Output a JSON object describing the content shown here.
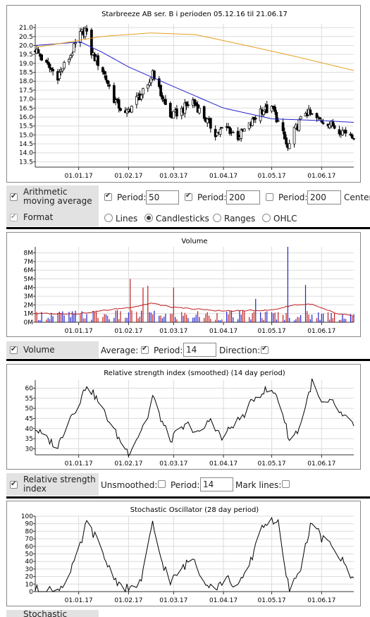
{
  "charts": {
    "price": {
      "title": "Starbreeze AB ser. B i perioden 05.12.16 til 21.06.17",
      "yticks": [
        "21.0",
        "20.5",
        "20.0",
        "19.5",
        "19.0",
        "18.5",
        "18.0",
        "17.5",
        "17.0",
        "16.5",
        "16.0",
        "15.5",
        "15.0",
        "14.5",
        "14.0",
        "13.5"
      ],
      "xticks": [
        "01.01.17",
        "01.02.17",
        "01.03.17",
        "01.04.17",
        "01.05.17",
        "01.06.17"
      ]
    },
    "volume": {
      "title": "Volume",
      "yticks": [
        "8M",
        "7M",
        "6M",
        "5M",
        "4M",
        "3M",
        "2M",
        "1M",
        "0M"
      ],
      "xticks": [
        "01.01.17",
        "01.02.17",
        "01.03.17",
        "01.04.17",
        "01.05.17",
        "01.06.17"
      ]
    },
    "rsi": {
      "title": "Relative strength index (smoothed) (14 day period)",
      "yticks": [
        "60",
        "55",
        "50",
        "45",
        "40",
        "35",
        "30"
      ],
      "xticks": [
        "01.01.17",
        "01.02.17",
        "01.03.17",
        "01.04.17",
        "01.05.17",
        "01.06.17"
      ]
    },
    "stoch": {
      "title": "Stochastic Oscillator (28 day period)",
      "yticks": [
        "100",
        "90",
        "80",
        "70",
        "60",
        "50",
        "40",
        "30",
        "20",
        "10",
        "0"
      ],
      "xticks": [
        "01.01.17",
        "01.02.17",
        "01.03.17",
        "01.04.17",
        "01.05.17",
        "01.06.17"
      ]
    }
  },
  "chart_data": [
    {
      "type": "candlestick",
      "title": "Starbreeze AB ser. B i perioden 05.12.16 til 21.06.17",
      "ylim": [
        13.2,
        21.2
      ],
      "xlim": [
        "2016-12-05",
        "2017-06-21"
      ],
      "xticks": [
        "01.01.17",
        "01.02.17",
        "01.03.17",
        "01.04.17",
        "01.05.17",
        "01.06.17"
      ],
      "grid": true,
      "close_keypoints": [
        [
          "2016-12-05",
          19.8
        ],
        [
          "2016-12-12",
          18.9
        ],
        [
          "2016-12-19",
          18.3
        ],
        [
          "2016-12-26",
          19.3
        ],
        [
          "2017-01-02",
          20.6
        ],
        [
          "2017-01-05",
          20.9
        ],
        [
          "2017-01-09",
          19.6
        ],
        [
          "2017-01-16",
          18.6
        ],
        [
          "2017-01-23",
          17.0
        ],
        [
          "2017-01-30",
          16.1
        ],
        [
          "2017-02-06",
          17.0
        ],
        [
          "2017-02-13",
          17.6
        ],
        [
          "2017-02-16",
          18.6
        ],
        [
          "2017-02-20",
          17.5
        ],
        [
          "2017-02-27",
          16.0
        ],
        [
          "2017-03-06",
          16.4
        ],
        [
          "2017-03-13",
          16.9
        ],
        [
          "2017-03-20",
          16.0
        ],
        [
          "2017-03-27",
          15.1
        ],
        [
          "2017-04-03",
          15.4
        ],
        [
          "2017-04-10",
          14.9
        ],
        [
          "2017-04-18",
          15.6
        ],
        [
          "2017-04-24",
          16.4
        ],
        [
          "2017-05-02",
          16.4
        ],
        [
          "2017-05-08",
          15.0
        ],
        [
          "2017-05-11",
          14.2
        ],
        [
          "2017-05-15",
          15.2
        ],
        [
          "2017-05-22",
          16.3
        ],
        [
          "2017-05-29",
          15.9
        ],
        [
          "2017-06-05",
          15.7
        ],
        [
          "2017-06-12",
          15.3
        ],
        [
          "2017-06-21",
          15.0
        ]
      ],
      "series": [
        {
          "name": "Period: 50",
          "color": "#2222cc",
          "keypoints": [
            [
              "2016-12-05",
              20.0
            ],
            [
              "2016-12-20",
              20.1
            ],
            [
              "2017-01-02",
              20.2
            ],
            [
              "2017-01-16",
              19.6
            ],
            [
              "2017-02-01",
              18.8
            ],
            [
              "2017-03-01",
              17.7
            ],
            [
              "2017-04-01",
              16.5
            ],
            [
              "2017-05-01",
              15.9
            ],
            [
              "2017-06-01",
              15.8
            ],
            [
              "2017-06-21",
              15.7
            ]
          ]
        },
        {
          "name": "Period: 200",
          "color": "#e8a020",
          "keypoints": [
            [
              "2016-12-05",
              19.9
            ],
            [
              "2016-12-20",
              20.1
            ],
            [
              "2017-01-15",
              20.5
            ],
            [
              "2017-02-15",
              20.7
            ],
            [
              "2017-03-15",
              20.6
            ],
            [
              "2017-04-15",
              20.0
            ],
            [
              "2017-05-15",
              19.4
            ],
            [
              "2017-06-21",
              18.6
            ]
          ]
        }
      ]
    },
    {
      "type": "bar",
      "title": "Volume",
      "ylim": [
        0,
        8700000
      ],
      "xticks": [
        "01.01.17",
        "01.02.17",
        "01.03.17",
        "01.04.17",
        "01.05.17",
        "01.06.17"
      ],
      "spikes": [
        {
          "date": "2017-02-02",
          "value": 5000000,
          "color": "#c02020"
        },
        {
          "date": "2017-02-10",
          "value": 4000000,
          "color": "#c02020"
        },
        {
          "date": "2017-02-13",
          "value": 4200000,
          "color": "#c02020"
        },
        {
          "date": "2017-03-01",
          "value": 4000000,
          "color": "#c02020"
        },
        {
          "date": "2017-04-21",
          "value": 2700000,
          "color": "#2222cc"
        },
        {
          "date": "2017-05-11",
          "value": 8700000,
          "color": "#2222cc"
        },
        {
          "date": "2017-05-22",
          "value": 4300000,
          "color": "#2222cc"
        }
      ],
      "series": [
        {
          "name": "Average",
          "color": "#c02020",
          "keypoints": [
            [
              "2016-12-05",
              1000000
            ],
            [
              "2017-01-01",
              1000000
            ],
            [
              "2017-02-05",
              1800000
            ],
            [
              "2017-02-15",
              2200000
            ],
            [
              "2017-03-01",
              1700000
            ],
            [
              "2017-04-01",
              1300000
            ],
            [
              "2017-05-01",
              1400000
            ],
            [
              "2017-05-15",
              2000000
            ],
            [
              "2017-05-25",
              2100000
            ],
            [
              "2017-06-10",
              1000000
            ],
            [
              "2017-06-21",
              700000
            ]
          ]
        }
      ]
    },
    {
      "type": "line",
      "title": "Relative strength index (smoothed) (14 day period)",
      "ylim": [
        27,
        64
      ],
      "xticks": [
        "01.01.17",
        "01.02.17",
        "01.03.17",
        "01.04.17",
        "01.05.17",
        "01.06.17"
      ],
      "series": [
        {
          "name": "RSI",
          "color": "#000000",
          "keypoints": [
            [
              "2016-12-05",
              40
            ],
            [
              "2016-12-12",
              35
            ],
            [
              "2016-12-19",
              31
            ],
            [
              "2016-12-26",
              45
            ],
            [
              "2017-01-01",
              52
            ],
            [
              "2017-01-06",
              62
            ],
            [
              "2017-01-12",
              55
            ],
            [
              "2017-01-19",
              45
            ],
            [
              "2017-01-26",
              35
            ],
            [
              "2017-02-01",
              28
            ],
            [
              "2017-02-06",
              35
            ],
            [
              "2017-02-13",
              46
            ],
            [
              "2017-02-16",
              56
            ],
            [
              "2017-02-21",
              45
            ],
            [
              "2017-02-27",
              34
            ],
            [
              "2017-03-03",
              38
            ],
            [
              "2017-03-10",
              42
            ],
            [
              "2017-03-17",
              37
            ],
            [
              "2017-03-24",
              45
            ],
            [
              "2017-03-31",
              35
            ],
            [
              "2017-04-07",
              42
            ],
            [
              "2017-04-13",
              46
            ],
            [
              "2017-04-20",
              55
            ],
            [
              "2017-04-27",
              59
            ],
            [
              "2017-05-04",
              57
            ],
            [
              "2017-05-09",
              44
            ],
            [
              "2017-05-12",
              34
            ],
            [
              "2017-05-18",
              40
            ],
            [
              "2017-05-26",
              63
            ],
            [
              "2017-06-01",
              52
            ],
            [
              "2017-06-08",
              53
            ],
            [
              "2017-06-14",
              46
            ],
            [
              "2017-06-21",
              42
            ]
          ]
        }
      ]
    },
    {
      "type": "line",
      "title": "Stochastic Oscillator (28 day period)",
      "ylim": [
        0,
        100
      ],
      "xticks": [
        "01.01.17",
        "01.02.17",
        "01.03.17",
        "01.04.17",
        "01.05.17",
        "01.06.17"
      ],
      "series": [
        {
          "name": "Stochastic",
          "color": "#000000",
          "keypoints": [
            [
              "2016-12-05",
              3
            ],
            [
              "2016-12-19",
              2
            ],
            [
              "2016-12-26",
              20
            ],
            [
              "2017-01-02",
              60
            ],
            [
              "2017-01-06",
              92
            ],
            [
              "2017-01-12",
              70
            ],
            [
              "2017-01-19",
              35
            ],
            [
              "2017-01-26",
              10
            ],
            [
              "2017-02-02",
              2
            ],
            [
              "2017-02-09",
              15
            ],
            [
              "2017-02-16",
              90
            ],
            [
              "2017-02-21",
              45
            ],
            [
              "2017-02-27",
              12
            ],
            [
              "2017-03-06",
              30
            ],
            [
              "2017-03-13",
              45
            ],
            [
              "2017-03-20",
              15
            ],
            [
              "2017-03-27",
              5
            ],
            [
              "2017-04-03",
              18
            ],
            [
              "2017-04-10",
              5
            ],
            [
              "2017-04-18",
              40
            ],
            [
              "2017-04-24",
              85
            ],
            [
              "2017-05-01",
              95
            ],
            [
              "2017-05-05",
              90
            ],
            [
              "2017-05-09",
              30
            ],
            [
              "2017-05-12",
              3
            ],
            [
              "2017-05-18",
              25
            ],
            [
              "2017-05-26",
              95
            ],
            [
              "2017-06-01",
              70
            ],
            [
              "2017-06-08",
              60
            ],
            [
              "2017-06-14",
              40
            ],
            [
              "2017-06-21",
              15
            ]
          ]
        }
      ]
    }
  ],
  "controls": {
    "ma": {
      "label": "Arithmetic moving average",
      "p1_label": "Period:",
      "p1_value": "50",
      "p2_label": "Period:",
      "p2_value": "200",
      "p3_label": "Period:",
      "p3_value": "200",
      "center_label": "Center"
    },
    "format": {
      "label": "Format",
      "options": [
        "Lines",
        "Candlesticks",
        "Ranges",
        "OHLC"
      ],
      "selected": "Candlesticks"
    },
    "volume": {
      "label": "Volume",
      "average_label": "Average:",
      "period_label": "Period:",
      "period_value": "14",
      "direction_label": "Direction:"
    },
    "rsi": {
      "label": "Relative strength index",
      "unsmoothed_label": "Unsmoothed:",
      "period_label": "Period:",
      "period_value": "14",
      "marklines_label": "Mark lines:"
    },
    "stoch": {
      "label": "Stochastic"
    }
  },
  "colors": {
    "candle_up": "#ffffff",
    "candle_down": "#000000",
    "ma50": "#2222cc",
    "ma200": "#e8a020",
    "vol_up": "#2222cc",
    "vol_down": "#c02020",
    "grid": "#dddddd"
  }
}
